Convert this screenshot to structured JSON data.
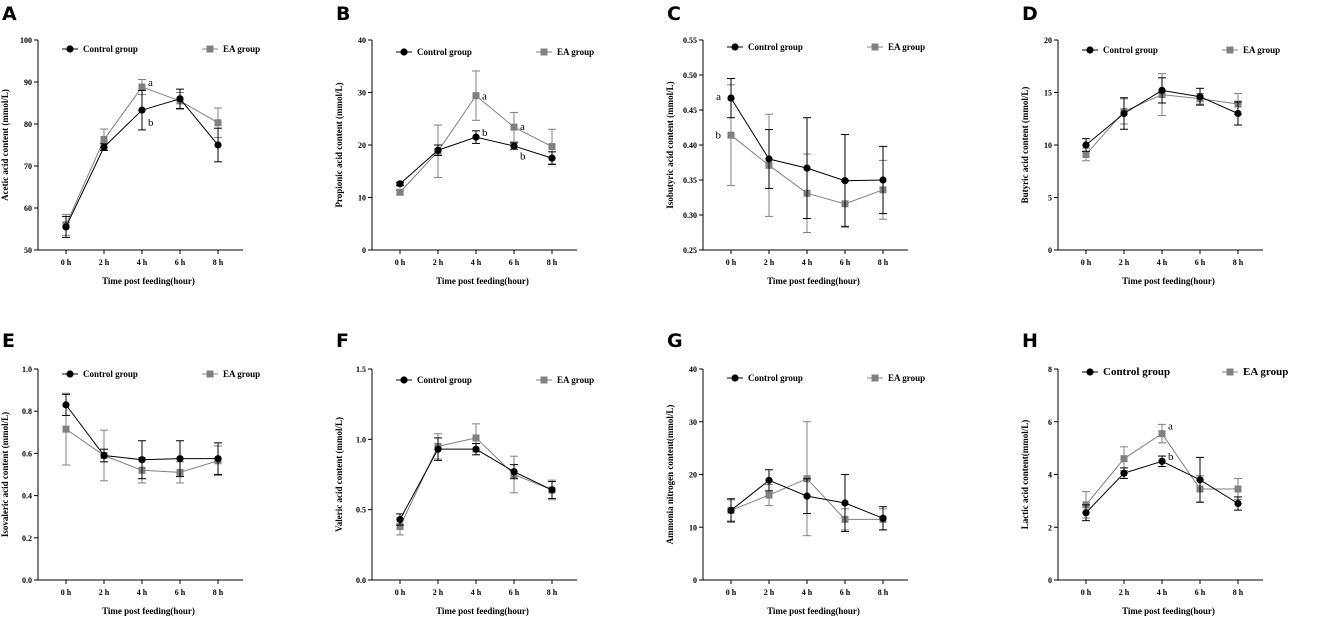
{
  "colors": {
    "control": "#000000",
    "ea": "#808080",
    "axis": "#000000"
  },
  "legend": {
    "control": "Control group",
    "ea": "EA group"
  },
  "chart_data": [
    {
      "panel": "A",
      "type": "line",
      "title": "",
      "xlabel": "Time post feeding(hour)",
      "ylabel": "Acetic acid content (mmol/L)",
      "categories": [
        "0 h",
        "2 h",
        "4 h",
        "6 h",
        "8 h"
      ],
      "ylim": [
        50,
        100
      ],
      "yticks": [
        "50",
        "60",
        "70",
        "80",
        "90",
        "100"
      ],
      "series": [
        {
          "name": "Control group",
          "values": [
            55.5,
            74.5,
            83.3,
            86.0,
            75.0
          ],
          "errors": [
            2.5,
            0.8,
            4.7,
            2.3,
            4.0
          ]
        },
        {
          "name": "EA group",
          "values": [
            56.0,
            76.3,
            88.8,
            85.5,
            80.3
          ],
          "errors": [
            2.5,
            2.5,
            1.8,
            2.0,
            3.5
          ]
        }
      ],
      "annotations": [
        {
          "text": "a",
          "cat": 2,
          "y": 90.0
        },
        {
          "text": "b",
          "cat": 2,
          "y": 80.5
        }
      ]
    },
    {
      "panel": "B",
      "type": "line",
      "title": "",
      "xlabel": "Time post feeding(hour)",
      "ylabel": "Propionic acid content  (mmol/L)",
      "categories": [
        "0 h",
        "2 h",
        "4 h",
        "6 h",
        "8 h"
      ],
      "ylim": [
        0,
        40
      ],
      "yticks": [
        "0",
        "10",
        "20",
        "30",
        "40"
      ],
      "series": [
        {
          "name": "Control group",
          "values": [
            12.6,
            19.0,
            21.5,
            19.8,
            17.5
          ],
          "errors": [
            0.3,
            1.0,
            1.2,
            0.6,
            1.2
          ]
        },
        {
          "name": "EA group",
          "values": [
            11.0,
            18.8,
            29.4,
            23.4,
            19.7
          ],
          "errors": [
            0.4,
            5.0,
            4.7,
            2.8,
            3.3
          ]
        }
      ],
      "annotations": [
        {
          "text": "a",
          "cat": 2,
          "y": 29.4
        },
        {
          "text": "b",
          "cat": 2,
          "y": 22.5
        },
        {
          "text": "a",
          "cat": 3,
          "y": 23.6
        },
        {
          "text": "b",
          "cat": 3,
          "y": 18.0
        }
      ]
    },
    {
      "panel": "C",
      "type": "line",
      "title": "",
      "xlabel": "Time post feeding(hour)",
      "ylabel": "Isobutyric acid content  (mmol/L)",
      "categories": [
        "0 h",
        "2 h",
        "4 h",
        "6 h",
        "8 h"
      ],
      "ylim": [
        0.25,
        0.55
      ],
      "yticks": [
        "0.25",
        "0.30",
        "0.35",
        "0.40",
        "0.45",
        "0.50",
        "0.55"
      ],
      "series": [
        {
          "name": "Control group",
          "values": [
            0.467,
            0.38,
            0.367,
            0.349,
            0.35
          ],
          "errors": [
            0.028,
            0.042,
            0.072,
            0.066,
            0.048
          ]
        },
        {
          "name": "EA group",
          "values": [
            0.414,
            0.371,
            0.331,
            0.316,
            0.336
          ],
          "errors": [
            0.072,
            0.073,
            0.056,
            0.032,
            0.042
          ]
        }
      ],
      "annotations": [
        {
          "text": "a",
          "cat": 0,
          "y": 0.47,
          "side": "left"
        },
        {
          "text": "b",
          "cat": 0,
          "y": 0.415,
          "side": "left"
        }
      ]
    },
    {
      "panel": "D",
      "type": "line",
      "title": "",
      "xlabel": "Time post feeding(hour)",
      "ylabel": "Butyric acid content (mmol/L)",
      "categories": [
        "0 h",
        "2 h",
        "4 h",
        "6 h",
        "8 h"
      ],
      "ylim": [
        0,
        20
      ],
      "yticks": [
        "0",
        "5",
        "10",
        "15",
        "20"
      ],
      "series": [
        {
          "name": "Control group",
          "values": [
            10.0,
            13.0,
            15.2,
            14.6,
            13.0
          ],
          "errors": [
            0.6,
            1.5,
            1.2,
            0.8,
            1.1
          ]
        },
        {
          "name": "EA group",
          "values": [
            9.1,
            13.2,
            14.8,
            14.4,
            13.9
          ],
          "errors": [
            0.6,
            1.2,
            2.0,
            0.5,
            1.0
          ]
        }
      ],
      "annotations": []
    },
    {
      "panel": "E",
      "type": "line",
      "title": "",
      "xlabel": "Time post feeding(hour)",
      "ylabel": "Isovaleric acid content  (mmol/L)",
      "categories": [
        "0 h",
        "2 h",
        "4 h",
        "6 h",
        "8 h"
      ],
      "ylim": [
        0,
        1.0
      ],
      "yticks": [
        "0.0",
        "0.2",
        "0.4",
        "0.6",
        "0.8",
        "1.0"
      ],
      "series": [
        {
          "name": "Control group",
          "values": [
            0.83,
            0.59,
            0.57,
            0.575,
            0.575
          ],
          "errors": [
            0.05,
            0.03,
            0.09,
            0.085,
            0.075
          ]
        },
        {
          "name": "EA group",
          "values": [
            0.715,
            0.59,
            0.52,
            0.51,
            0.565
          ],
          "errors": [
            0.17,
            0.12,
            0.06,
            0.05,
            0.07
          ]
        }
      ],
      "annotations": []
    },
    {
      "panel": "F",
      "type": "line",
      "title": "",
      "xlabel": "Time post feeding(hour)",
      "ylabel": "Valeric acid content (mmol/L)",
      "categories": [
        "0 h",
        "2 h",
        "4 h",
        "6 h",
        "8 h"
      ],
      "ylim": [
        0,
        1.5
      ],
      "yticks": [
        "0.0",
        "0.5",
        "1.0",
        "1.5"
      ],
      "series": [
        {
          "name": "Control group",
          "values": [
            0.43,
            0.93,
            0.93,
            0.77,
            0.64
          ],
          "errors": [
            0.04,
            0.08,
            0.04,
            0.05,
            0.06
          ]
        },
        {
          "name": "EA group",
          "values": [
            0.38,
            0.95,
            1.01,
            0.75,
            0.64
          ],
          "errors": [
            0.06,
            0.09,
            0.1,
            0.13,
            0.07
          ]
        }
      ],
      "annotations": []
    },
    {
      "panel": "G",
      "type": "line",
      "title": "",
      "xlabel": "Time post feeding(hour)",
      "ylabel": "Ammonia nitrogen content(mmol/L)",
      "categories": [
        "0 h",
        "2 h",
        "4 h",
        "6 h",
        "8 h"
      ],
      "ylim": [
        0,
        40
      ],
      "yticks": [
        "0",
        "10",
        "20",
        "30",
        "40"
      ],
      "series": [
        {
          "name": "Control group",
          "values": [
            13.2,
            18.9,
            15.9,
            14.6,
            11.7
          ],
          "errors": [
            2.2,
            2.0,
            3.3,
            5.4,
            2.2
          ]
        },
        {
          "name": "EA group",
          "values": [
            13.2,
            16.1,
            19.2,
            11.5,
            11.5
          ],
          "errors": [
            2.0,
            2.0,
            10.8,
            2.0,
            2.0
          ]
        }
      ],
      "annotations": []
    },
    {
      "panel": "H",
      "type": "line",
      "title": "",
      "xlabel": "Time post feeding(hour)",
      "ylabel": "Lactic acid content(mmol/L)",
      "categories": [
        "0 h",
        "2 h",
        "4 h",
        "6 h",
        "8 h"
      ],
      "ylim": [
        0,
        8
      ],
      "yticks": [
        "0",
        "2",
        "4",
        "6",
        "8"
      ],
      "series": [
        {
          "name": "Control group",
          "values": [
            2.55,
            4.05,
            4.5,
            3.8,
            2.9
          ],
          "errors": [
            0.3,
            0.2,
            0.2,
            0.85,
            0.25
          ]
        },
        {
          "name": "EA group",
          "values": [
            2.85,
            4.6,
            5.55,
            3.45,
            3.45
          ],
          "errors": [
            0.5,
            0.45,
            0.35,
            0.5,
            0.4
          ]
        }
      ],
      "annotations": [
        {
          "text": "a",
          "cat": 2,
          "y": 5.85
        },
        {
          "text": "b",
          "cat": 2,
          "y": 4.7
        }
      ]
    }
  ]
}
